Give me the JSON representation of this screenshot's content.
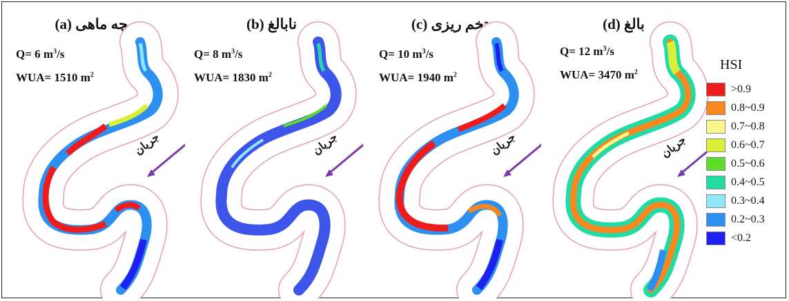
{
  "panels": [
    {
      "title_fa": "بچه ماهی",
      "title_letter": "(a)",
      "q_label": "Q= 6 m",
      "q_unit": "3",
      "q_tail": "/s",
      "wua_label": "WUA= 1510 m",
      "wua_unit": "2",
      "flow_label": "جریان",
      "style": "a"
    },
    {
      "title_fa": "نابالغ",
      "title_letter": "(b)",
      "q_label": "Q= 8 m",
      "q_unit": "3",
      "q_tail": "/s",
      "wua_label": "WUA= 1830 m",
      "wua_unit": "2",
      "flow_label": "جریان",
      "style": "b"
    },
    {
      "title_fa": "تخم ریزی",
      "title_letter": "(c)",
      "q_label": "Q= 10 m",
      "q_unit": "3",
      "q_tail": "/s",
      "wua_label": "WUA= 1940 m",
      "wua_unit": "2",
      "flow_label": "جریان",
      "style": "c"
    },
    {
      "title_fa": "بالغ",
      "title_letter": "(d)",
      "q_label": "Q= 12 m",
      "q_unit": "3",
      "q_tail": "/s",
      "wua_label": "WUA= 3470 m",
      "wua_unit": "2",
      "flow_label": "جریان",
      "style": "d"
    }
  ],
  "legend": {
    "title": "HSI",
    "items": [
      {
        "label": ">0.9",
        "color": "#ee1c1c"
      },
      {
        "label": "0.8~0.9",
        "color": "#f7871e"
      },
      {
        "label": "0.7~0.8",
        "color": "#fbf58e"
      },
      {
        "label": "0.6~0.7",
        "color": "#dbee3a"
      },
      {
        "label": "0.5~0.6",
        "color": "#5fdb2a"
      },
      {
        "label": "0.4~0.5",
        "color": "#22dba4"
      },
      {
        "label": "0.3~0.4",
        "color": "#8fe6f5"
      },
      {
        "label": "0.2~0.3",
        "color": "#2d8ff0"
      },
      {
        "label": "<0.2",
        "color": "#1f1ff0"
      }
    ]
  },
  "colors": {
    "arrow": "#7a3aa8",
    "bank_outline": "#e3a0a8"
  }
}
